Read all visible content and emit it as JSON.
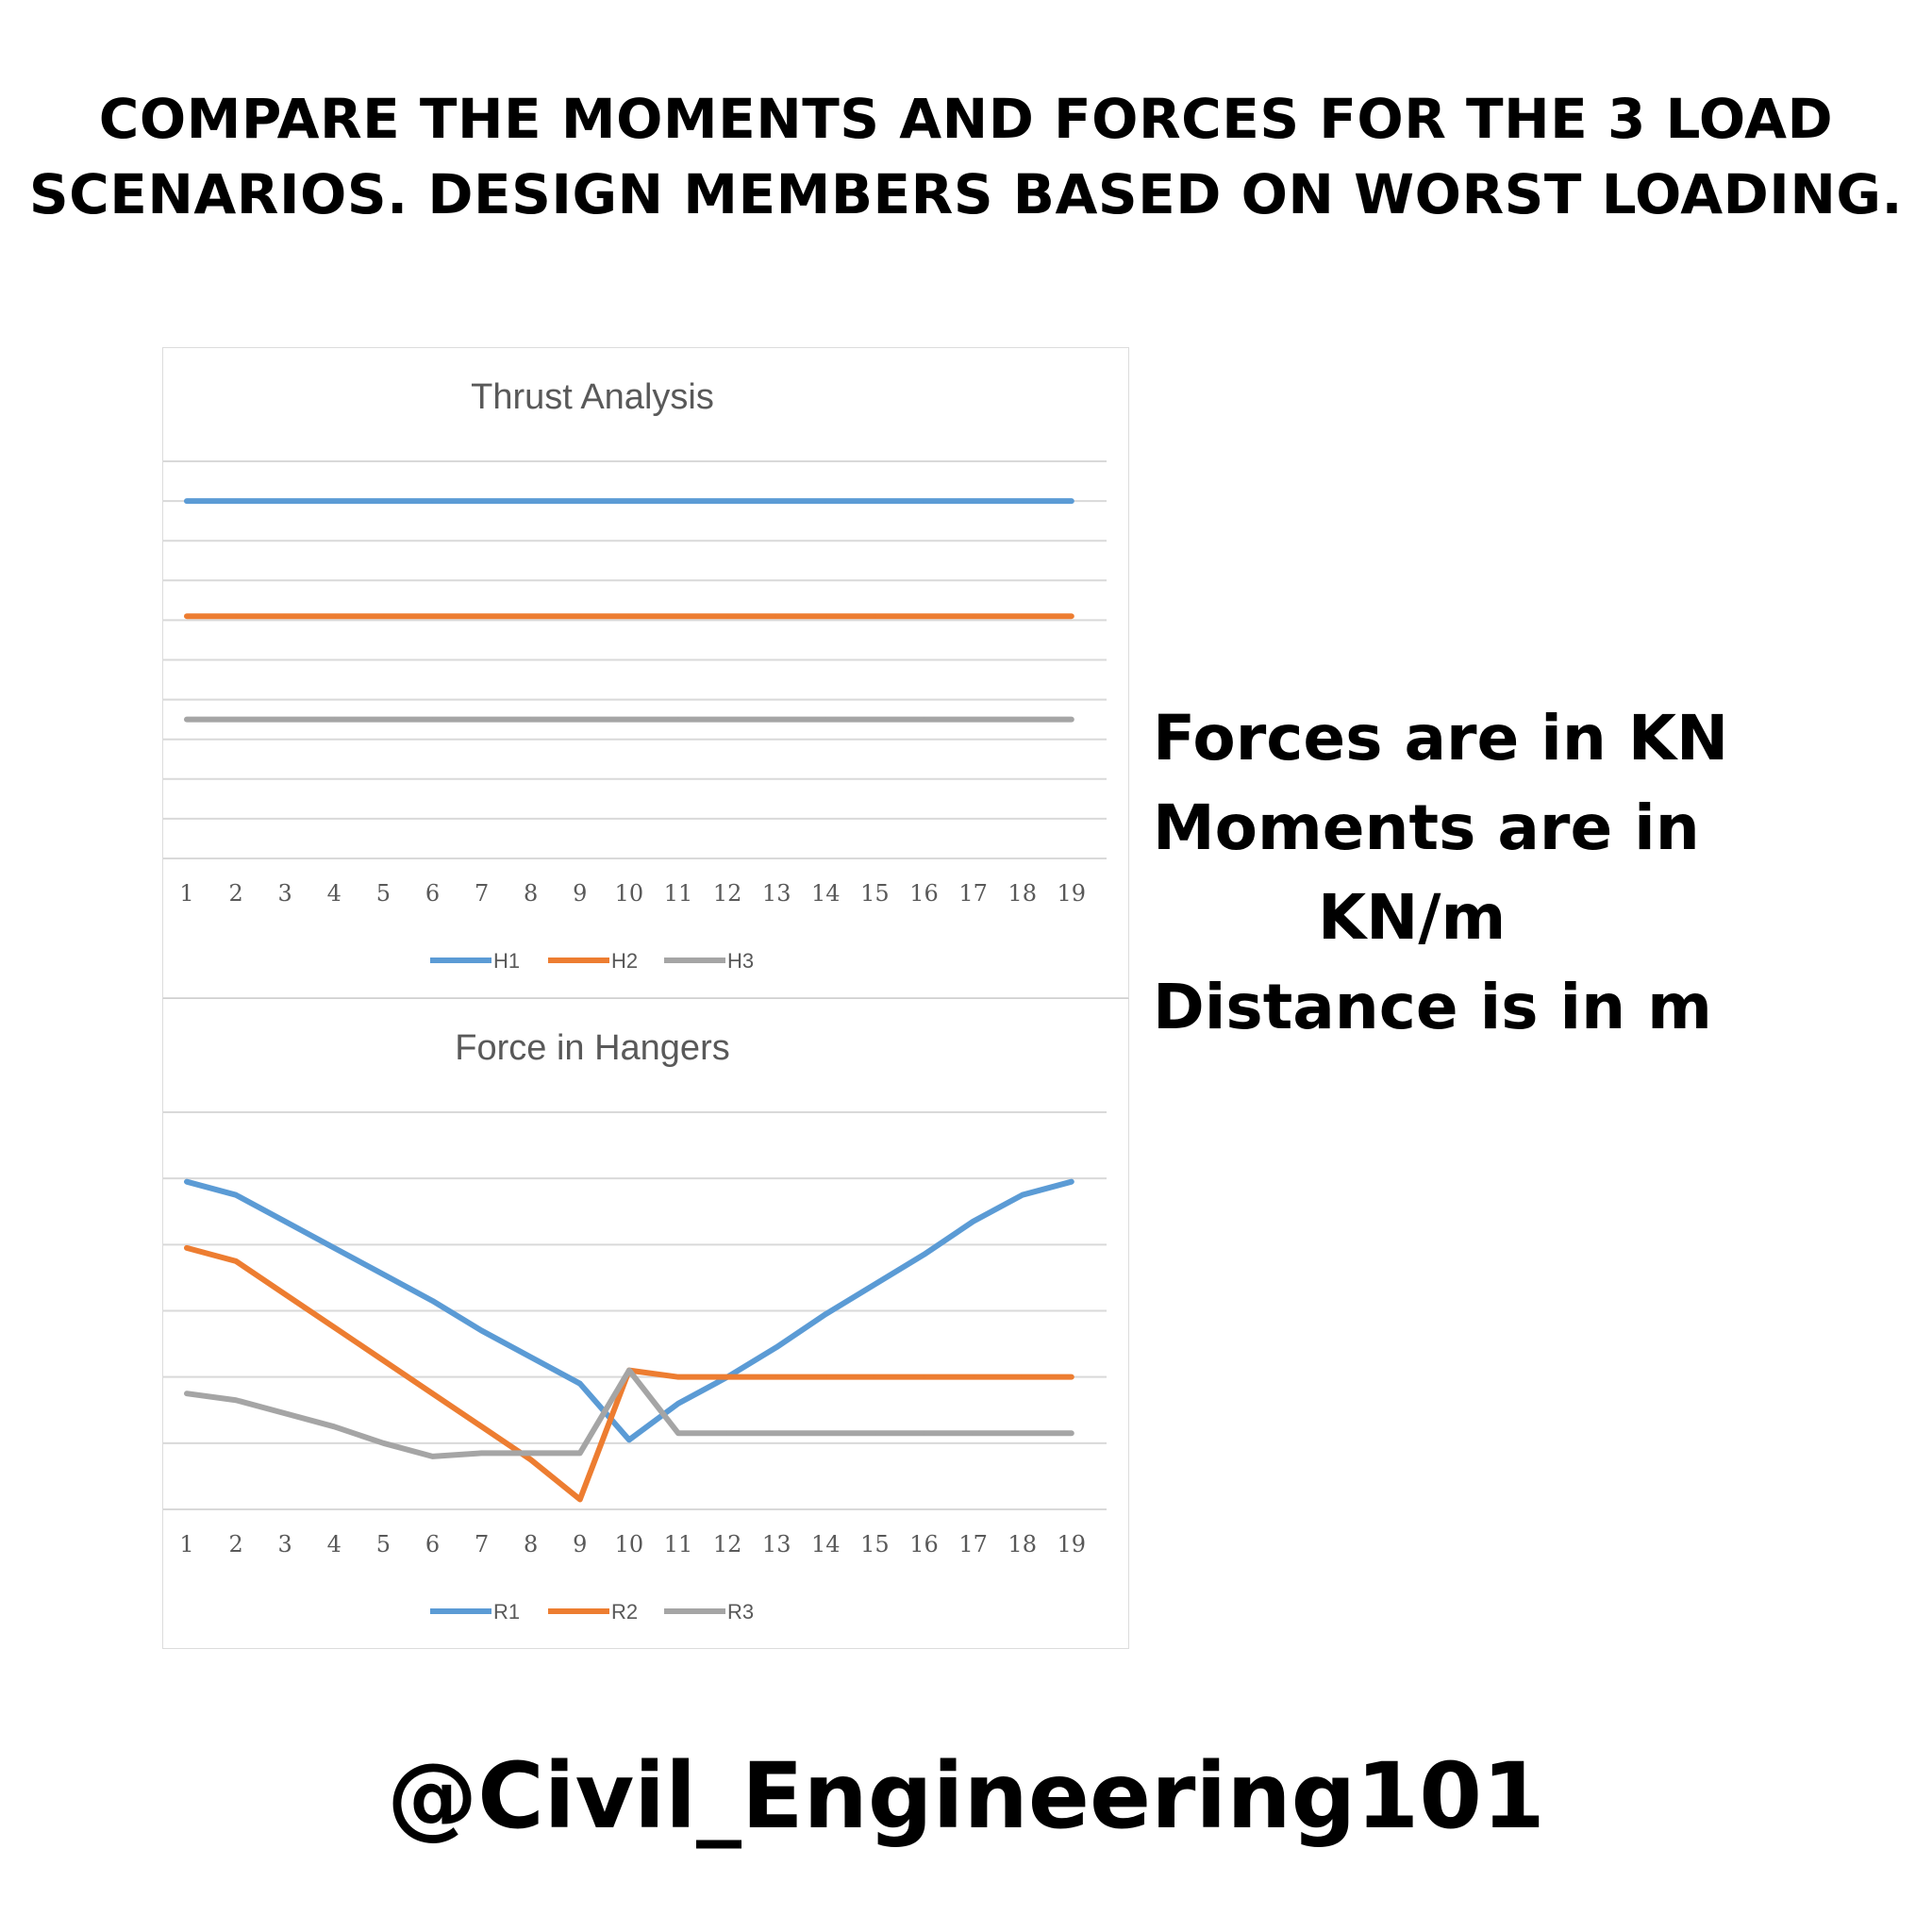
{
  "header": {
    "line1": "COMPARE THE MOMENTS AND FORCES FOR THE 3 LOAD",
    "line2": "SCENARIOS. DESIGN MEMBERS BASED ON WORST LOADING."
  },
  "notes": {
    "line1": "Forces are in KN",
    "line2": "Moments are in",
    "line3": "KN/m",
    "line4": "Distance is in m"
  },
  "handle": "@Civil_Engineering101",
  "colors": {
    "s1": "#5b9bd5",
    "s2": "#ed7d31",
    "s3": "#a5a5a5",
    "grid": "#d9d9d9",
    "text": "#595959"
  },
  "chart_data": [
    {
      "type": "line",
      "title": "Thrust Analysis",
      "categories": [
        "1",
        "2",
        "3",
        "4",
        "5",
        "6",
        "7",
        "8",
        "9",
        "10",
        "11",
        "12",
        "13",
        "14",
        "15",
        "16",
        "17",
        "18",
        "19"
      ],
      "ylim": [
        0,
        10
      ],
      "grid": true,
      "legend_position": "bottom",
      "series": [
        {
          "name": "H1",
          "values": [
            9.0,
            9.0,
            9.0,
            9.0,
            9.0,
            9.0,
            9.0,
            9.0,
            9.0,
            9.0,
            9.0,
            9.0,
            9.0,
            9.0,
            9.0,
            9.0,
            9.0,
            9.0,
            9.0
          ]
        },
        {
          "name": "H2",
          "values": [
            6.1,
            6.1,
            6.1,
            6.1,
            6.1,
            6.1,
            6.1,
            6.1,
            6.1,
            6.1,
            6.1,
            6.1,
            6.1,
            6.1,
            6.1,
            6.1,
            6.1,
            6.1,
            6.1
          ]
        },
        {
          "name": "H3",
          "values": [
            3.5,
            3.5,
            3.5,
            3.5,
            3.5,
            3.5,
            3.5,
            3.5,
            3.5,
            3.5,
            3.5,
            3.5,
            3.5,
            3.5,
            3.5,
            3.5,
            3.5,
            3.5,
            3.5
          ]
        }
      ]
    },
    {
      "type": "line",
      "title": "Force in Hangers",
      "categories": [
        "1",
        "2",
        "3",
        "4",
        "5",
        "6",
        "7",
        "8",
        "9",
        "10",
        "11",
        "12",
        "13",
        "14",
        "15",
        "16",
        "17",
        "18",
        "19"
      ],
      "ylim": [
        0,
        6
      ],
      "grid": true,
      "legend_position": "bottom",
      "series": [
        {
          "name": "R1",
          "values": [
            4.95,
            4.75,
            4.35,
            3.95,
            3.55,
            3.15,
            2.7,
            2.3,
            1.9,
            1.05,
            1.6,
            2.0,
            2.45,
            2.95,
            3.4,
            3.85,
            4.35,
            4.75,
            4.95
          ]
        },
        {
          "name": "R2",
          "values": [
            3.95,
            3.75,
            3.25,
            2.75,
            2.25,
            1.75,
            1.25,
            0.75,
            0.15,
            2.1,
            2.0,
            2.0,
            2.0,
            2.0,
            2.0,
            2.0,
            2.0,
            2.0,
            2.0
          ]
        },
        {
          "name": "R3",
          "values": [
            1.75,
            1.65,
            1.45,
            1.25,
            1.0,
            0.8,
            0.85,
            0.85,
            0.85,
            2.1,
            1.15,
            1.15,
            1.15,
            1.15,
            1.15,
            1.15,
            1.15,
            1.15,
            1.15
          ]
        }
      ]
    }
  ]
}
